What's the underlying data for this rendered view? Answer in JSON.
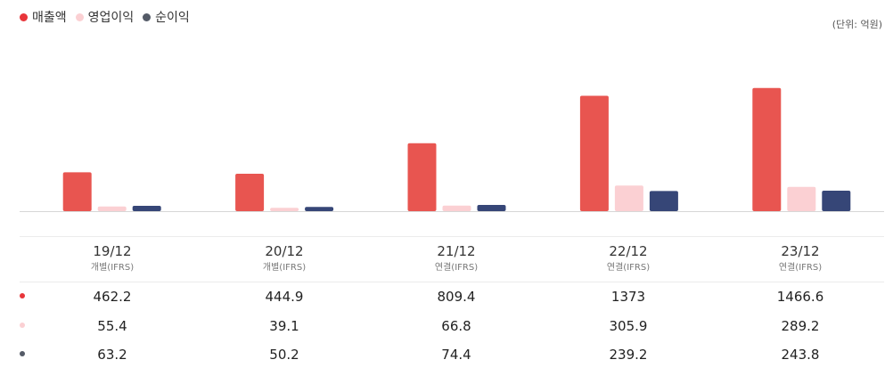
{
  "legend": [
    {
      "label": "매출액",
      "color": "#e85550"
    },
    {
      "label": "영업이익",
      "color": "#fbd0d3"
    },
    {
      "label": "순이익",
      "color": "#545b67"
    }
  ],
  "unit_label": "(단위: 억원)",
  "columns": [
    {
      "period": "19/12",
      "basis": "개별(IFRS)"
    },
    {
      "period": "20/12",
      "basis": "개별(IFRS)"
    },
    {
      "period": "21/12",
      "basis": "연결(IFRS)"
    },
    {
      "period": "22/12",
      "basis": "연결(IFRS)"
    },
    {
      "period": "23/12",
      "basis": "연결(IFRS)"
    }
  ],
  "chart_data": {
    "type": "bar",
    "categories": [
      "19/12",
      "20/12",
      "21/12",
      "22/12",
      "23/12"
    ],
    "series": [
      {
        "name": "매출액",
        "color": "#e85550",
        "values": [
          462.2,
          444.9,
          809.4,
          1373,
          1466.6
        ]
      },
      {
        "name": "영업이익",
        "color": "#fbd0d3",
        "values": [
          55.4,
          39.1,
          66.8,
          305.9,
          289.2
        ]
      },
      {
        "name": "순이익",
        "color": "#364677",
        "values": [
          63.2,
          50.2,
          74.4,
          239.2,
          243.8
        ]
      }
    ],
    "ylim": [
      0,
      1500
    ],
    "grid": false,
    "legend_position": "top-left"
  },
  "table": {
    "rows": [
      {
        "dot_color": "#e8353a",
        "values": [
          "462.2",
          "444.9",
          "809.4",
          "1373",
          "1466.6"
        ]
      },
      {
        "dot_color": "#fbd0d3",
        "values": [
          "55.4",
          "39.1",
          "66.8",
          "305.9",
          "289.2"
        ]
      },
      {
        "dot_color": "#545b67",
        "values": [
          "63.2",
          "50.2",
          "74.4",
          "239.2",
          "243.8"
        ]
      }
    ]
  }
}
